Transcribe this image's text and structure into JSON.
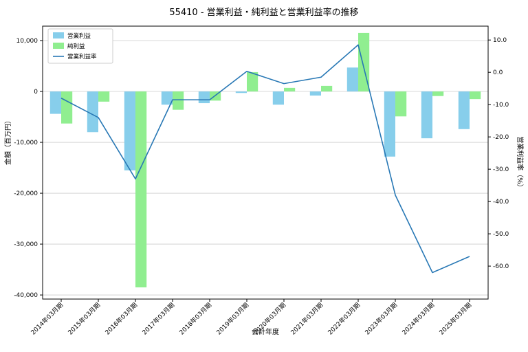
{
  "chart_data": {
    "type": "bar+line",
    "title": "55410 - 営業利益・純利益と営業利益率の推移",
    "xlabel": "会計年度",
    "ylabel_left": "金額（百万円）",
    "ylabel_right": "営業利益率（%）",
    "categories": [
      "2014年03月期",
      "2015年03月期",
      "2016年03月期",
      "2017年03月期",
      "2018年03月期",
      "2019年03月期",
      "2020年03月期",
      "2021年03月期",
      "2022年03月期",
      "2023年03月期",
      "2024年03月期",
      "2025年03月期"
    ],
    "series": [
      {
        "name": "営業利益",
        "type": "bar",
        "axis": "left",
        "color": "#87ceeb",
        "values": [
          -4400,
          -8000,
          -15500,
          -2600,
          -2300,
          -300,
          -2600,
          -800,
          4700,
          -12800,
          -9200,
          -7400
        ]
      },
      {
        "name": "純利益",
        "type": "bar",
        "axis": "left",
        "color": "#90ee90",
        "values": [
          -6300,
          -2000,
          -38500,
          -3600,
          -1800,
          3800,
          700,
          1100,
          11500,
          -4900,
          -900,
          -1500
        ]
      },
      {
        "name": "営業利益率",
        "type": "line",
        "axis": "right",
        "color": "#2878b5",
        "values": [
          -8,
          -14,
          -33,
          -8.5,
          -8.5,
          0.3,
          -3.5,
          -1.5,
          8.5,
          -38,
          -62,
          -57
        ]
      }
    ],
    "left_ylim": [
      -40800,
      12840
    ],
    "left_ticks": [
      10000,
      0,
      -10000,
      -20000,
      -30000,
      -40000
    ],
    "right_ylim": [
      -70.2,
      14.3
    ],
    "right_ticks": [
      10,
      0,
      -10,
      -20,
      -30,
      -40,
      -50,
      -60
    ],
    "grid": true,
    "grid_color": "#cccccc",
    "legend_position": "upper left"
  }
}
